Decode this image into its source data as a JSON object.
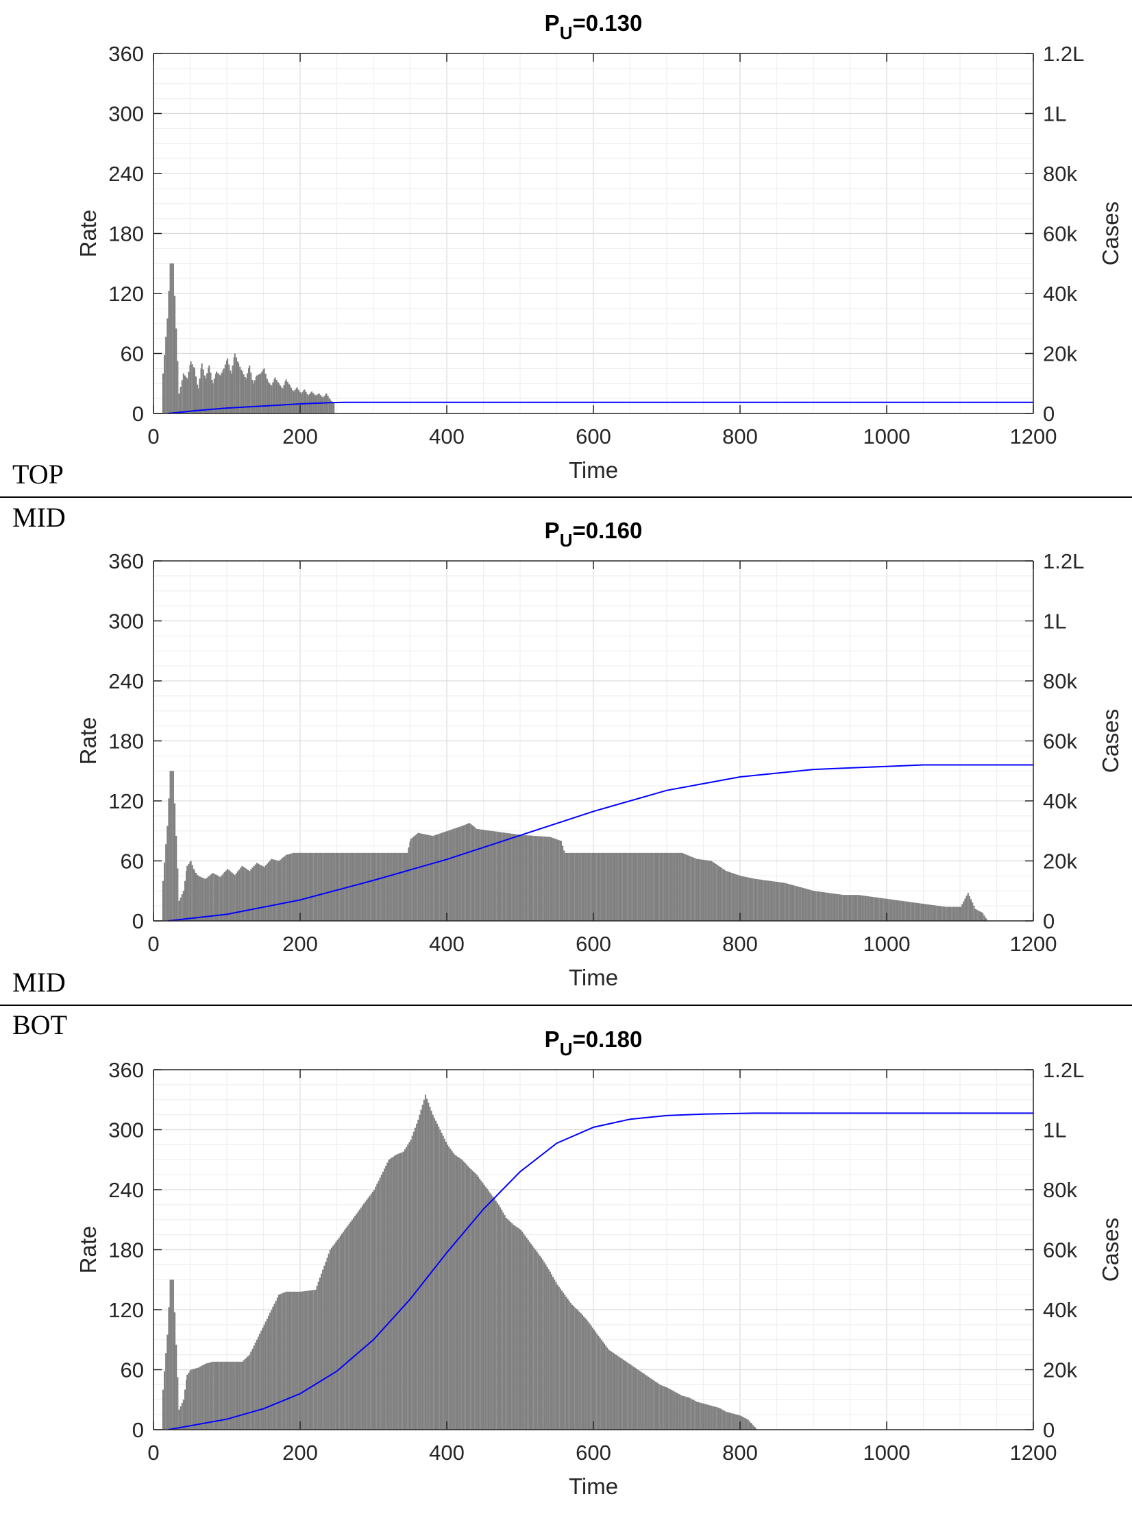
{
  "tags": {
    "top": "TOP",
    "mid_a": "MID",
    "mid_b": "MID",
    "bot": "BOT"
  },
  "colors": {
    "bars": "#808080",
    "line": "#0000ff",
    "grid": "#e6e6e6",
    "axis": "#262626"
  },
  "chart_data": [
    {
      "type": "bar",
      "title_main": "P",
      "title_sub": "U",
      "title_value": "=0.130",
      "xlabel": "Time",
      "ylabel": "Rate",
      "y2label": "Cases",
      "xlim": [
        0,
        1200
      ],
      "ylim": [
        0,
        360
      ],
      "y2lim": [
        0,
        120000
      ],
      "xticks": [
        0,
        200,
        400,
        600,
        800,
        1000,
        1200
      ],
      "yticks": [
        0,
        60,
        120,
        180,
        240,
        300,
        360
      ],
      "y2ticks": [
        "0",
        "20k",
        "40k",
        "60k",
        "80k",
        "1L",
        "1.2L"
      ],
      "grid": true,
      "series": [
        {
          "kind": "bars",
          "points": [
            [
              12,
              40
            ],
            [
              18,
              95
            ],
            [
              22,
              150
            ],
            [
              26,
              150
            ],
            [
              30,
              85
            ],
            [
              34,
              20
            ],
            [
              40,
              40
            ],
            [
              45,
              35
            ],
            [
              50,
              52
            ],
            [
              55,
              45
            ],
            [
              60,
              25
            ],
            [
              65,
              50
            ],
            [
              70,
              35
            ],
            [
              75,
              48
            ],
            [
              80,
              30
            ],
            [
              85,
              42
            ],
            [
              90,
              38
            ],
            [
              95,
              45
            ],
            [
              100,
              55
            ],
            [
              105,
              40
            ],
            [
              110,
              60
            ],
            [
              115,
              50
            ],
            [
              120,
              42
            ],
            [
              125,
              35
            ],
            [
              130,
              48
            ],
            [
              135,
              30
            ],
            [
              140,
              38
            ],
            [
              145,
              40
            ],
            [
              150,
              45
            ],
            [
              155,
              32
            ],
            [
              160,
              28
            ],
            [
              165,
              36
            ],
            [
              170,
              30
            ],
            [
              175,
              25
            ],
            [
              180,
              34
            ],
            [
              185,
              28
            ],
            [
              190,
              22
            ],
            [
              195,
              26
            ],
            [
              200,
              20
            ],
            [
              205,
              24
            ],
            [
              210,
              18
            ],
            [
              215,
              22
            ],
            [
              220,
              18
            ],
            [
              225,
              20
            ],
            [
              230,
              16
            ],
            [
              235,
              20
            ],
            [
              240,
              14
            ],
            [
              245,
              10
            ]
          ]
        },
        {
          "kind": "line",
          "points": [
            [
              20,
              0
            ],
            [
              60,
              1000
            ],
            [
              100,
              1800
            ],
            [
              150,
              2500
            ],
            [
              200,
              3200
            ],
            [
              240,
              3600
            ],
            [
              260,
              3700
            ],
            [
              400,
              3700
            ],
            [
              800,
              3700
            ],
            [
              1200,
              3700
            ]
          ]
        }
      ]
    },
    {
      "type": "bar",
      "title_main": "P",
      "title_sub": "U",
      "title_value": "=0.160",
      "xlabel": "Time",
      "ylabel": "Rate",
      "y2label": "Cases",
      "xlim": [
        0,
        1200
      ],
      "ylim": [
        0,
        360
      ],
      "y2lim": [
        0,
        120000
      ],
      "xticks": [
        0,
        200,
        400,
        600,
        800,
        1000,
        1200
      ],
      "yticks": [
        0,
        60,
        120,
        180,
        240,
        300,
        360
      ],
      "y2ticks": [
        "0",
        "20k",
        "40k",
        "60k",
        "80k",
        "1L",
        "1.2L"
      ],
      "grid": true,
      "series": [
        {
          "kind": "bars",
          "points": [
            [
              12,
              40
            ],
            [
              18,
              95
            ],
            [
              22,
              150
            ],
            [
              26,
              150
            ],
            [
              30,
              85
            ],
            [
              34,
              20
            ],
            [
              40,
              30
            ],
            [
              45,
              55
            ],
            [
              50,
              60
            ],
            [
              55,
              50
            ],
            [
              60,
              45
            ],
            [
              70,
              42
            ],
            [
              80,
              48
            ],
            [
              90,
              44
            ],
            [
              100,
              52
            ],
            [
              110,
              46
            ],
            [
              120,
              55
            ],
            [
              130,
              50
            ],
            [
              140,
              58
            ],
            [
              150,
              54
            ],
            [
              160,
              62
            ],
            [
              170,
              60
            ],
            [
              180,
              66
            ],
            [
              190,
              68
            ],
            [
              200,
              68
            ],
            [
              250,
              68
            ],
            [
              300,
              68
            ],
            [
              345,
              68
            ],
            [
              350,
              82
            ],
            [
              360,
              88
            ],
            [
              380,
              85
            ],
            [
              400,
              90
            ],
            [
              420,
              95
            ],
            [
              430,
              98
            ],
            [
              440,
              92
            ],
            [
              460,
              90
            ],
            [
              480,
              88
            ],
            [
              500,
              86
            ],
            [
              520,
              85
            ],
            [
              540,
              84
            ],
            [
              555,
              80
            ],
            [
              560,
              68
            ],
            [
              600,
              68
            ],
            [
              650,
              68
            ],
            [
              700,
              68
            ],
            [
              720,
              68
            ],
            [
              740,
              62
            ],
            [
              760,
              60
            ],
            [
              780,
              50
            ],
            [
              800,
              45
            ],
            [
              820,
              42
            ],
            [
              840,
              40
            ],
            [
              860,
              38
            ],
            [
              880,
              34
            ],
            [
              900,
              30
            ],
            [
              920,
              28
            ],
            [
              940,
              26
            ],
            [
              960,
              26
            ],
            [
              980,
              24
            ],
            [
              1000,
              22
            ],
            [
              1020,
              20
            ],
            [
              1040,
              18
            ],
            [
              1060,
              16
            ],
            [
              1080,
              14
            ],
            [
              1100,
              14
            ],
            [
              1110,
              28
            ],
            [
              1120,
              12
            ],
            [
              1130,
              8
            ],
            [
              1135,
              2
            ]
          ]
        },
        {
          "kind": "line",
          "points": [
            [
              20,
              0
            ],
            [
              100,
              2200
            ],
            [
              200,
              7000
            ],
            [
              300,
              13500
            ],
            [
              400,
              20500
            ],
            [
              500,
              28500
            ],
            [
              600,
              36500
            ],
            [
              700,
              43500
            ],
            [
              800,
              48000
            ],
            [
              900,
              50500
            ],
            [
              1000,
              51500
            ],
            [
              1050,
              52000
            ],
            [
              1100,
              52000
            ],
            [
              1200,
              52000
            ]
          ]
        }
      ]
    },
    {
      "type": "bar",
      "title_main": "P",
      "title_sub": "U",
      "title_value": "=0.180",
      "xlabel": "Time",
      "ylabel": "Rate",
      "y2label": "Cases",
      "xlim": [
        0,
        1200
      ],
      "ylim": [
        0,
        360
      ],
      "y2lim": [
        0,
        120000
      ],
      "xticks": [
        0,
        200,
        400,
        600,
        800,
        1000,
        1200
      ],
      "yticks": [
        0,
        60,
        120,
        180,
        240,
        300,
        360
      ],
      "y2ticks": [
        "0",
        "20k",
        "40k",
        "60k",
        "80k",
        "1L",
        "1.2L"
      ],
      "grid": true,
      "series": [
        {
          "kind": "bars",
          "points": [
            [
              12,
              40
            ],
            [
              18,
              95
            ],
            [
              22,
              150
            ],
            [
              26,
              150
            ],
            [
              30,
              85
            ],
            [
              34,
              20
            ],
            [
              40,
              30
            ],
            [
              45,
              55
            ],
            [
              50,
              60
            ],
            [
              60,
              62
            ],
            [
              70,
              66
            ],
            [
              80,
              68
            ],
            [
              100,
              68
            ],
            [
              120,
              68
            ],
            [
              130,
              75
            ],
            [
              140,
              90
            ],
            [
              150,
              105
            ],
            [
              160,
              120
            ],
            [
              170,
              135
            ],
            [
              180,
              138
            ],
            [
              200,
              138
            ],
            [
              220,
              140
            ],
            [
              230,
              160
            ],
            [
              240,
              180
            ],
            [
              250,
              190
            ],
            [
              260,
              200
            ],
            [
              280,
              220
            ],
            [
              300,
              240
            ],
            [
              310,
              255
            ],
            [
              320,
              270
            ],
            [
              330,
              275
            ],
            [
              340,
              278
            ],
            [
              350,
              290
            ],
            [
              360,
              310
            ],
            [
              370,
              335
            ],
            [
              380,
              315
            ],
            [
              390,
              300
            ],
            [
              400,
              285
            ],
            [
              410,
              275
            ],
            [
              420,
              270
            ],
            [
              430,
              262
            ],
            [
              440,
              255
            ],
            [
              450,
              245
            ],
            [
              460,
              235
            ],
            [
              470,
              225
            ],
            [
              480,
              212
            ],
            [
              490,
              205
            ],
            [
              500,
              200
            ],
            [
              510,
              190
            ],
            [
              520,
              180
            ],
            [
              530,
              170
            ],
            [
              540,
              158
            ],
            [
              550,
              145
            ],
            [
              560,
              135
            ],
            [
              570,
              125
            ],
            [
              580,
              118
            ],
            [
              590,
              110
            ],
            [
              600,
              100
            ],
            [
              610,
              90
            ],
            [
              620,
              80
            ],
            [
              630,
              75
            ],
            [
              640,
              70
            ],
            [
              650,
              65
            ],
            [
              660,
              60
            ],
            [
              670,
              55
            ],
            [
              680,
              50
            ],
            [
              690,
              45
            ],
            [
              700,
              42
            ],
            [
              710,
              38
            ],
            [
              720,
              34
            ],
            [
              730,
              32
            ],
            [
              740,
              28
            ],
            [
              750,
              26
            ],
            [
              760,
              24
            ],
            [
              770,
              22
            ],
            [
              780,
              18
            ],
            [
              790,
              16
            ],
            [
              800,
              14
            ],
            [
              810,
              10
            ],
            [
              815,
              6
            ],
            [
              820,
              2
            ]
          ]
        },
        {
          "kind": "line",
          "points": [
            [
              20,
              0
            ],
            [
              100,
              3500
            ],
            [
              150,
              7000
            ],
            [
              200,
              12000
            ],
            [
              250,
              19500
            ],
            [
              300,
              30000
            ],
            [
              350,
              43500
            ],
            [
              400,
              59000
            ],
            [
              450,
              73500
            ],
            [
              500,
              86000
            ],
            [
              550,
              95500
            ],
            [
              600,
              100800
            ],
            [
              650,
              103500
            ],
            [
              700,
              104700
            ],
            [
              750,
              105200
            ],
            [
              820,
              105500
            ],
            [
              1000,
              105500
            ],
            [
              1200,
              105500
            ]
          ]
        }
      ]
    }
  ]
}
